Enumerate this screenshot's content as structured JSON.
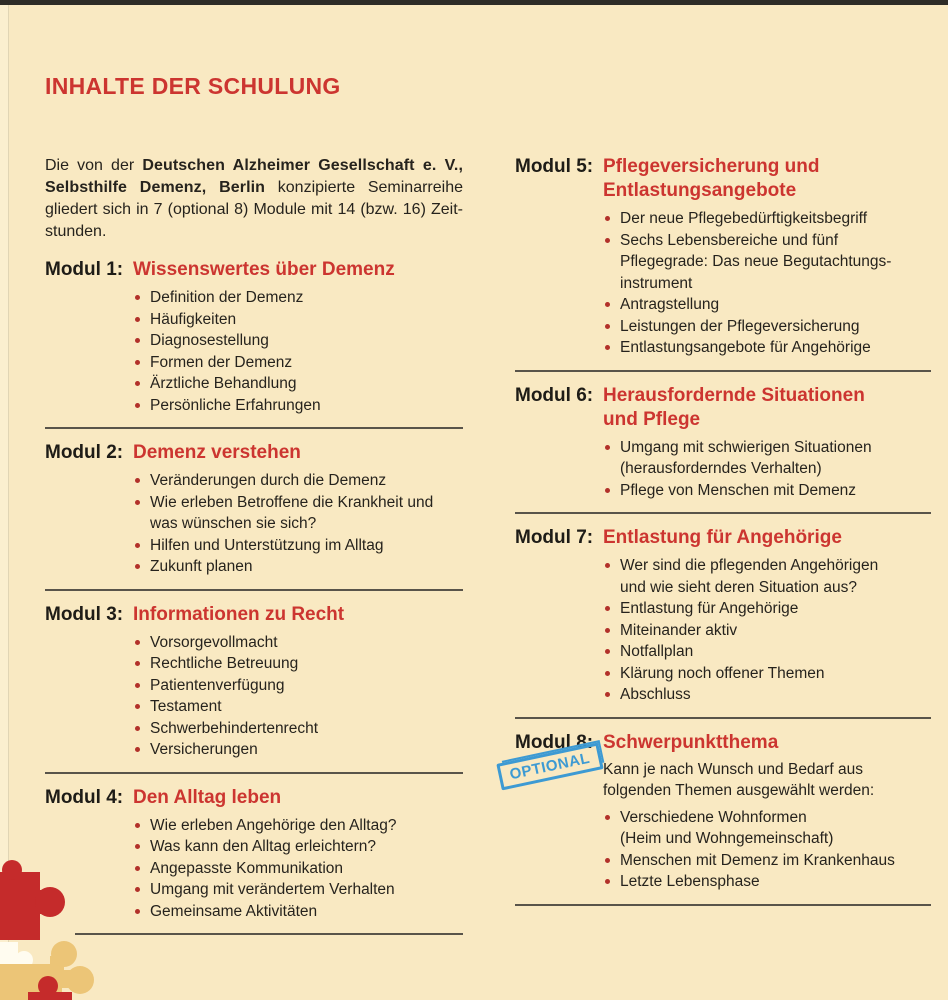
{
  "title": "INHALTE DER SCHULUNG",
  "intro": {
    "prefix": "Die von der ",
    "bold_text": "Deutschen Alzheimer Gesellschaft e. V., Selbsthilfe Demenz, Berlin",
    "suffix": " konzipierte Seminarreihe gliedert sich in 7 (optional 8) Module mit 14 (bzw. 16) Zeit­stunden."
  },
  "columns": {
    "left": [
      {
        "label": "Modul 1:",
        "title": "Wissenswertes über Demenz",
        "items": [
          "Definition der Demenz",
          "Häufigkeiten",
          "Diagnosestellung",
          "Formen der Demenz",
          "Ärztliche Behandlung",
          "Persönliche Erfahrungen"
        ]
      },
      {
        "label": "Modul 2:",
        "title": "Demenz verstehen",
        "items": [
          "Veränderungen durch die Demenz",
          "Wie erleben Betroffene die Krankheit und\nwas wünschen sie sich?",
          "Hilfen und Unterstützung im Alltag",
          "Zukunft planen"
        ]
      },
      {
        "label": "Modul 3:",
        "title": "Informationen zu Recht",
        "items": [
          "Vorsorgevollmacht",
          "Rechtliche Betreuung",
          "Patientenverfügung",
          "Testament",
          "Schwerbehindertenrecht",
          "Versicherungen"
        ]
      },
      {
        "label": "Modul 4:",
        "title": "Den Alltag leben",
        "items": [
          "Wie erleben Angehörige den Alltag?",
          "Was kann den Alltag erleichtern?",
          "Angepasste Kommunikation",
          "Umgang mit verändertem Verhalten",
          "Gemeinsame Aktivitäten"
        ]
      }
    ],
    "right": [
      {
        "label": "Modul 5:",
        "title": "Pflegeversicherung und\nEntlastungsangebote",
        "items": [
          "Der neue Pflegebedürftigkeitsbegriff",
          "Sechs Lebensbereiche und fünf\nPflegegrade: Das neue Begutachtungs-\ninstrument",
          "Antragstellung",
          "Leistungen der Pflegeversicherung",
          "Entlastungsangebote für Angehörige"
        ]
      },
      {
        "label": "Modul 6:",
        "title": "Herausfordernde Situationen\nund Pflege",
        "items": [
          "Umgang mit schwierigen Situationen\n(herausforderndes Verhalten)",
          "Pflege von Menschen mit Demenz"
        ]
      },
      {
        "label": "Modul 7:",
        "title": "Entlastung für Angehörige",
        "items": [
          "Wer sind die pflegenden Angehörigen\nund wie sieht deren Situation aus?",
          "Entlastung für Angehörige",
          "Miteinander aktiv",
          "Notfallplan",
          "Klärung noch offener Themen",
          "Abschluss"
        ]
      },
      {
        "label": "Modul 8:",
        "title": "Schwerpunktthema",
        "stamp": "OPTIONAL",
        "lead": "Kann je nach Wunsch und Bedarf aus\nfolgenden Themen ausgewählt werden:",
        "items": [
          "Verschiedene Wohnformen\n(Heim und Wohngemeinschaft)",
          "Menschen mit Demenz im Krankenhaus",
          "Letzte Lebensphase"
        ]
      }
    ]
  },
  "colors": {
    "background": "#f9e9c2",
    "accent_red": "#cc3530",
    "bullet_red": "#b2312a",
    "stamp_blue": "#3d9ad3",
    "divider": "#59544a",
    "top_bar": "#2e2c27",
    "puzzle_red": "#c52b2b",
    "puzzle_tan": "#ecc577",
    "puzzle_white": "#fffcf0"
  }
}
